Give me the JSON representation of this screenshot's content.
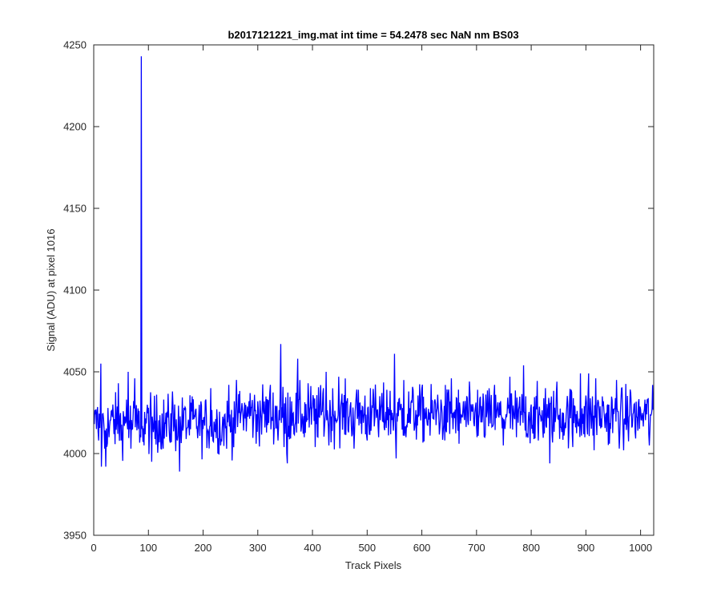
{
  "chart_data": {
    "type": "line",
    "title": "b2017121221_img.mat int time = 54.2478 sec  NaN nm BS03",
    "xlabel": "Track Pixels",
    "ylabel": "Signal (ADU) at pixel 1016",
    "xlim": [
      0,
      1024
    ],
    "ylim": [
      3950,
      4250
    ],
    "xticks": [
      0,
      100,
      200,
      300,
      400,
      500,
      600,
      700,
      800,
      900,
      1000
    ],
    "yticks": [
      3950,
      4000,
      4050,
      4100,
      4150,
      4200,
      4250
    ],
    "grid": false,
    "line_color": "#0000ff",
    "series": [
      {
        "baseline": 4022,
        "noise_range": [
          3990,
          4067
        ],
        "points": [
          [
            1,
            4018
          ],
          [
            6,
            4025
          ],
          [
            9,
            4008
          ],
          [
            12,
            4024
          ],
          [
            13,
            4055
          ],
          [
            14,
            3992
          ],
          [
            20,
            4003
          ],
          [
            22,
            3992
          ],
          [
            28,
            4010
          ],
          [
            35,
            4030
          ],
          [
            45,
            4043
          ],
          [
            50,
            4008
          ],
          [
            55,
            4022
          ],
          [
            60,
            4033
          ],
          [
            63,
            4050
          ],
          [
            68,
            4003
          ],
          [
            75,
            4046
          ],
          [
            82,
            4015
          ],
          [
            86,
            4010
          ],
          [
            87,
            4243
          ],
          [
            88,
            4015
          ],
          [
            92,
            4005
          ],
          [
            100,
            4028
          ],
          [
            106,
            3995
          ],
          [
            115,
            4036
          ],
          [
            127,
            4003
          ],
          [
            144,
            4038
          ],
          [
            157,
            3989
          ],
          [
            165,
            4028
          ],
          [
            180,
            4035
          ],
          [
            200,
            4015
          ],
          [
            214,
            4040
          ],
          [
            232,
            4005
          ],
          [
            247,
            4042
          ],
          [
            257,
            4032
          ],
          [
            270,
            4026
          ],
          [
            286,
            4037
          ],
          [
            297,
            4006
          ],
          [
            300,
            4032
          ],
          [
            310,
            4026
          ],
          [
            323,
            4042
          ],
          [
            337,
            4008
          ],
          [
            341,
            4039
          ],
          [
            342,
            4067
          ],
          [
            348,
            4004
          ],
          [
            353,
            4000
          ],
          [
            354,
            3994
          ],
          [
            362,
            4032
          ],
          [
            373,
            4058
          ],
          [
            385,
            4010
          ],
          [
            392,
            4043
          ],
          [
            405,
            4004
          ],
          [
            420,
            4040
          ],
          [
            425,
            4050
          ],
          [
            430,
            4005
          ],
          [
            448,
            4047
          ],
          [
            462,
            4032
          ],
          [
            476,
            4003
          ],
          [
            484,
            4039
          ],
          [
            500,
            4008
          ],
          [
            506,
            4040
          ],
          [
            521,
            4010
          ],
          [
            536,
            4039
          ],
          [
            548,
            4014
          ],
          [
            550,
            4061
          ],
          [
            553,
            3997
          ],
          [
            567,
            4045
          ],
          [
            571,
            4010
          ],
          [
            584,
            4039
          ],
          [
            600,
            4040
          ],
          [
            615,
            4011
          ],
          [
            629,
            4036
          ],
          [
            642,
            4008
          ],
          [
            654,
            4046
          ],
          [
            668,
            4006
          ],
          [
            676,
            4032
          ],
          [
            689,
            4020
          ],
          [
            702,
            4039
          ],
          [
            715,
            4010
          ],
          [
            733,
            4042
          ],
          [
            749,
            4005
          ],
          [
            761,
            4047
          ],
          [
            773,
            4010
          ],
          [
            786,
            4054
          ],
          [
            791,
            4010
          ],
          [
            800,
            4030
          ],
          [
            813,
            4008
          ],
          [
            826,
            4040
          ],
          [
            834,
            3994
          ],
          [
            847,
            4044
          ],
          [
            860,
            4011
          ],
          [
            873,
            4039
          ],
          [
            876,
            4004
          ],
          [
            890,
            4049
          ],
          [
            898,
            4010
          ],
          [
            905,
            4049
          ],
          [
            915,
            4002
          ],
          [
            918,
            4046
          ],
          [
            930,
            4035
          ],
          [
            943,
            4006
          ],
          [
            956,
            4045
          ],
          [
            969,
            4002
          ],
          [
            982,
            4037
          ],
          [
            995,
            4014
          ],
          [
            1000,
            4027
          ],
          [
            1008,
            4033
          ],
          [
            1016,
            4005
          ],
          [
            1024,
            4030
          ]
        ]
      }
    ]
  }
}
